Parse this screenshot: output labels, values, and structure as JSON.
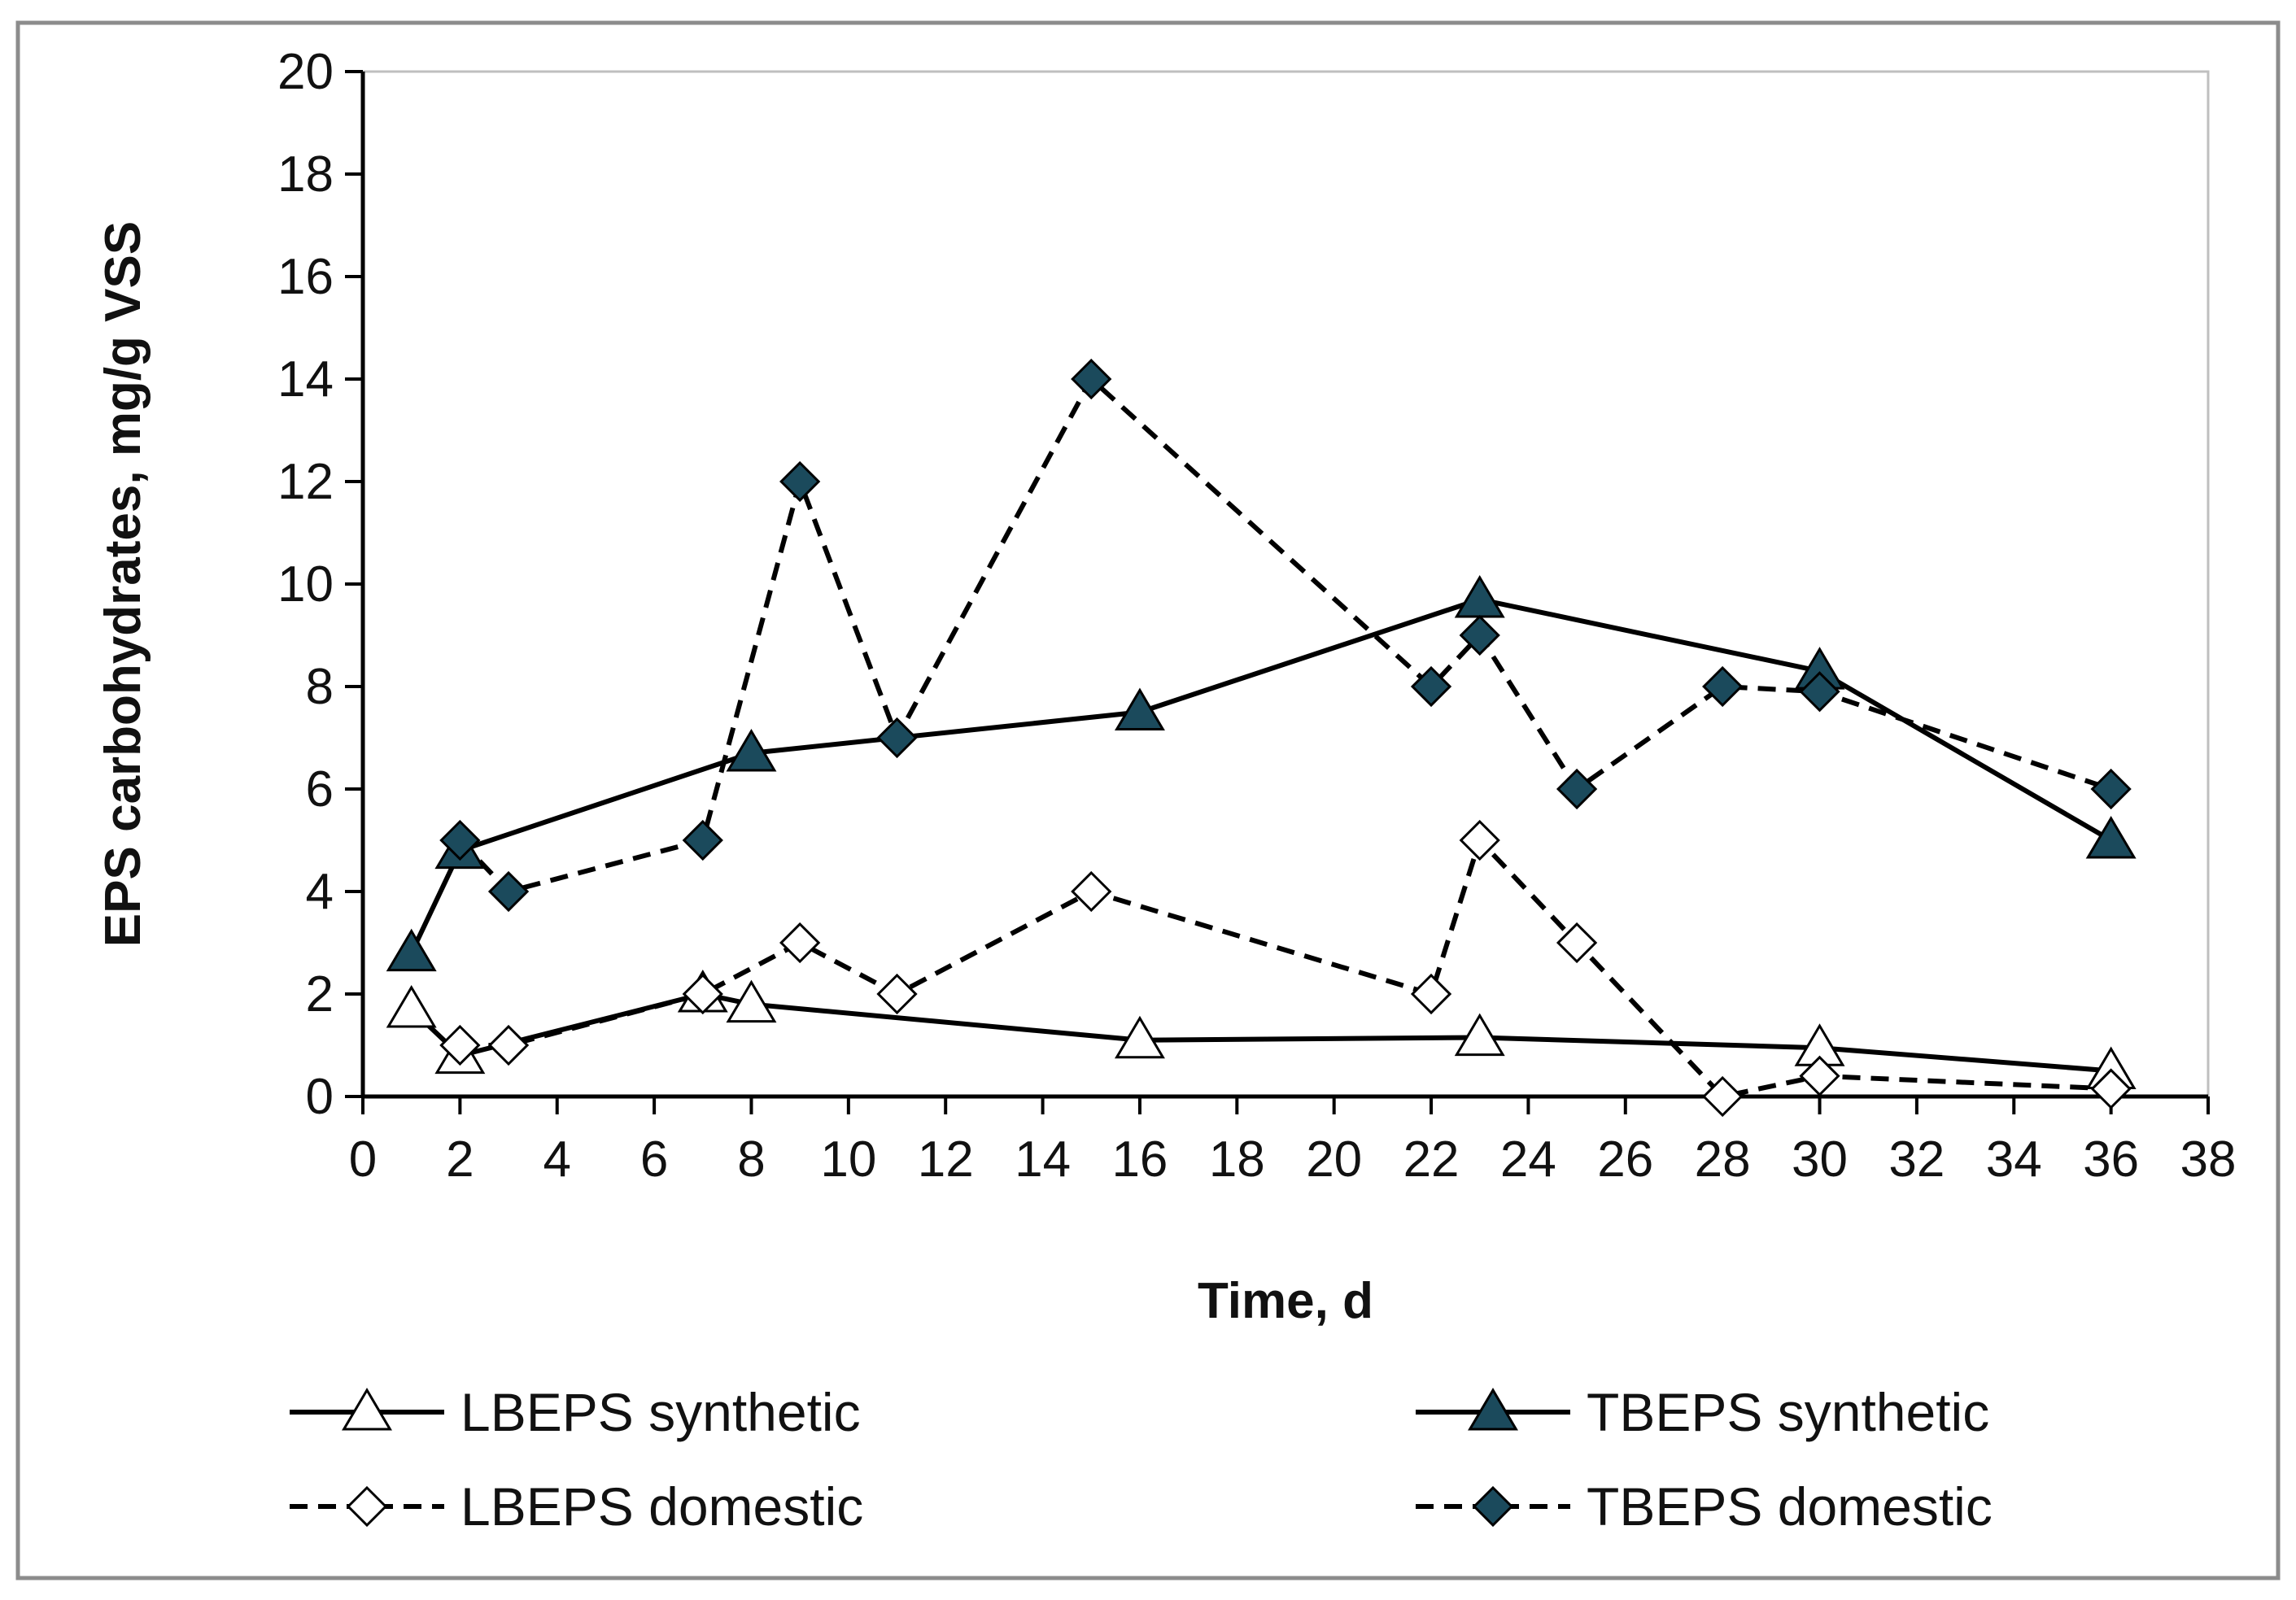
{
  "chart_data": {
    "type": "line",
    "title": "",
    "xlabel": "Time, d",
    "ylabel": "EPS carbohydrates, mg/g VSS",
    "xlim": [
      0,
      38
    ],
    "ylim": [
      0,
      20
    ],
    "x_ticks": [
      0,
      2,
      4,
      6,
      8,
      10,
      12,
      14,
      16,
      18,
      20,
      22,
      24,
      26,
      28,
      30,
      32,
      34,
      36,
      38
    ],
    "y_ticks": [
      0,
      2,
      4,
      6,
      8,
      10,
      12,
      14,
      16,
      18,
      20
    ],
    "grid": false,
    "legend_position": "bottom",
    "colors": {
      "line": "#000000",
      "marker_fill_dark": "#1b4a5c",
      "marker_fill_light": "#ffffff",
      "frame": "#8c8c8c"
    },
    "series": [
      {
        "name": "LBEPS synthetic",
        "line_style": "solid",
        "marker": "triangle",
        "marker_fill": "#ffffff",
        "x": [
          1,
          2,
          7,
          8,
          16,
          23,
          30,
          36
        ],
        "y": [
          1.7,
          0.8,
          2.0,
          1.8,
          1.1,
          1.15,
          0.95,
          0.5
        ]
      },
      {
        "name": "TBEPS synthetic",
        "line_style": "solid",
        "marker": "triangle",
        "marker_fill": "#1b4a5c",
        "x": [
          1,
          2,
          8,
          16,
          23,
          30,
          36
        ],
        "y": [
          2.8,
          4.8,
          6.7,
          7.5,
          9.7,
          8.3,
          5.0
        ]
      },
      {
        "name": "LBEPS domestic",
        "line_style": "dashed",
        "marker": "diamond",
        "marker_fill": "#ffffff",
        "x": [
          2,
          3,
          7,
          9,
          11,
          15,
          22,
          23,
          25,
          28,
          30,
          36
        ],
        "y": [
          1.0,
          1.0,
          2.0,
          3.0,
          2.0,
          4.0,
          2.0,
          5.0,
          3.0,
          0.0,
          0.4,
          0.15
        ]
      },
      {
        "name": "TBEPS domestic",
        "line_style": "dashed",
        "marker": "diamond",
        "marker_fill": "#1b4a5c",
        "x": [
          2,
          3,
          7,
          9,
          11,
          15,
          22,
          23,
          25,
          28,
          30,
          36
        ],
        "y": [
          5.0,
          4.0,
          5.0,
          12.0,
          7.0,
          14.0,
          8.0,
          9.0,
          6.0,
          8.0,
          7.9,
          6.0
        ]
      }
    ]
  }
}
